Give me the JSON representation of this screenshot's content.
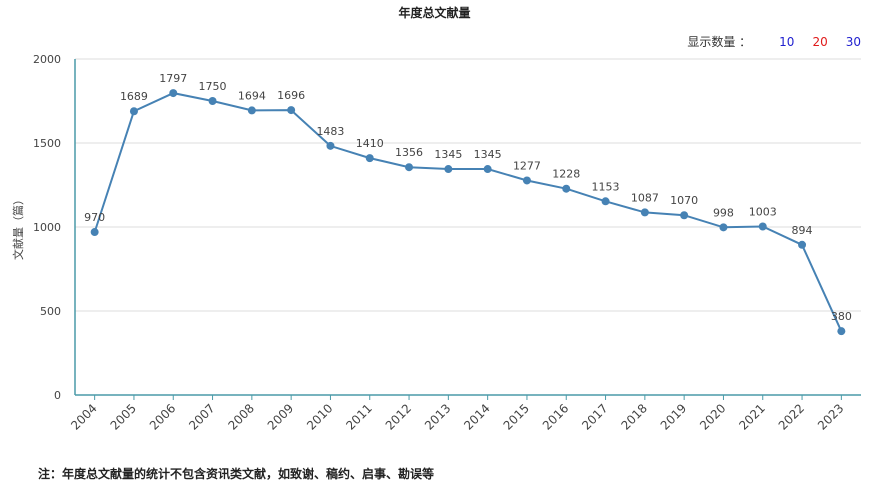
{
  "title": "年度总文献量",
  "display_count": {
    "label": "显示数量 ：",
    "options": [
      {
        "label": "10",
        "color": "#1f1fcf"
      },
      {
        "label": "20",
        "color": "#e01a1a"
      },
      {
        "label": "30",
        "color": "#1f1fcf"
      }
    ]
  },
  "footnote": "注：年度总文献量的统计不包含资讯类文献，如致谢、稿约、启事、勘误等",
  "chart_data": {
    "type": "line",
    "title": "年度总文献量",
    "ylabel": "文献量（篇）",
    "xlabel": "",
    "ylim": [
      0,
      2000
    ],
    "yticks": [
      0,
      500,
      1000,
      1500,
      2000
    ],
    "grid": true,
    "line_color": "#4682b4",
    "categories": [
      "2004",
      "2005",
      "2006",
      "2007",
      "2008",
      "2009",
      "2010",
      "2011",
      "2012",
      "2013",
      "2014",
      "2015",
      "2016",
      "2017",
      "2018",
      "2019",
      "2020",
      "2021",
      "2022",
      "2023"
    ],
    "values": [
      970,
      1689,
      1797,
      1750,
      1694,
      1696,
      1483,
      1410,
      1356,
      1345,
      1345,
      1277,
      1228,
      1153,
      1087,
      1070,
      998,
      1003,
      894,
      380
    ]
  }
}
